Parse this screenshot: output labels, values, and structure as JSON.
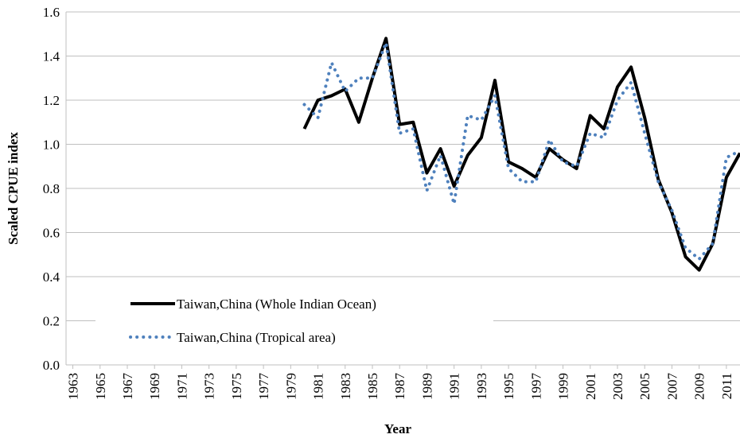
{
  "chart_data": {
    "type": "line",
    "y_label": "Scaled CPUE index",
    "x_label": "Year",
    "x": [
      1980,
      1981,
      1982,
      1983,
      1984,
      1985,
      1986,
      1987,
      1988,
      1989,
      1990,
      1991,
      1992,
      1993,
      1994,
      1995,
      1996,
      1997,
      1998,
      1999,
      2000,
      2001,
      2002,
      2003,
      2004,
      2005,
      2006,
      2007,
      2008,
      2009,
      2010,
      2011,
      2012
    ],
    "series": [
      {
        "name": "Taiwan,China (Whole Indian Ocean)",
        "color": "#000000",
        "style": "solid",
        "values": [
          1.07,
          1.2,
          1.22,
          1.25,
          1.1,
          1.3,
          1.48,
          1.09,
          1.1,
          0.87,
          0.98,
          0.81,
          0.95,
          1.03,
          1.29,
          0.92,
          0.89,
          0.85,
          0.98,
          0.93,
          0.89,
          1.13,
          1.07,
          1.26,
          1.35,
          1.12,
          0.84,
          0.69,
          0.49,
          0.43,
          0.55,
          0.85,
          0.96
        ]
      },
      {
        "name": "Taiwan,China (Tropical area)",
        "color": "#4f81bd",
        "style": "dotted",
        "values": [
          1.18,
          1.12,
          1.37,
          1.24,
          1.3,
          1.3,
          1.46,
          1.05,
          1.07,
          0.79,
          0.95,
          0.73,
          1.13,
          1.11,
          1.22,
          0.89,
          0.83,
          0.83,
          1.02,
          0.92,
          0.9,
          1.05,
          1.03,
          1.2,
          1.28,
          1.05,
          0.83,
          0.7,
          0.53,
          0.48,
          0.55,
          0.94,
          0.97
        ]
      }
    ],
    "xlim": [
      1962.5,
      2012
    ],
    "xticks": [
      1963,
      1965,
      1967,
      1969,
      1971,
      1973,
      1975,
      1977,
      1979,
      1981,
      1983,
      1985,
      1987,
      1989,
      1991,
      1993,
      1995,
      1997,
      1999,
      2001,
      2003,
      2005,
      2007,
      2009,
      2011
    ],
    "ylim": [
      0,
      1.6
    ],
    "yticks": [
      {
        "value": 0,
        "label": "0.0"
      },
      0.2,
      0.4,
      0.6,
      0.8,
      {
        "value": 1,
        "label": "1.0"
      },
      1.2,
      1.4,
      1.6
    ],
    "grid": true,
    "legend": "lower left"
  }
}
